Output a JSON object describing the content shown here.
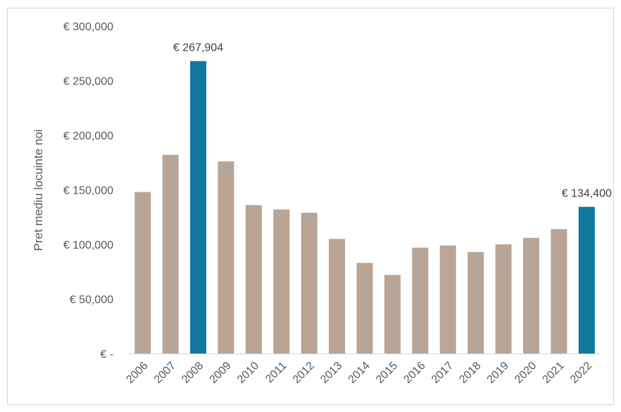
{
  "chart_data": {
    "type": "bar",
    "categories": [
      "2006",
      "2007",
      "2008",
      "2009",
      "2010",
      "2011",
      "2012",
      "2013",
      "2014",
      "2015",
      "2016",
      "2017",
      "2018",
      "2019",
      "2020",
      "2021",
      "2022"
    ],
    "values": [
      148000,
      182000,
      267904,
      176000,
      136000,
      132000,
      129000,
      105000,
      83000,
      72000,
      97000,
      99000,
      93000,
      100000,
      106000,
      114000,
      134400
    ],
    "highlight_indices": [
      2,
      16
    ],
    "data_labels": [
      {
        "index": 2,
        "text": "€ 267,904"
      },
      {
        "index": 16,
        "text": "€ 134,400"
      }
    ],
    "title": "",
    "xlabel": "",
    "ylabel": "Pret mediu locuinte noi",
    "ylim": [
      0,
      300000
    ],
    "y_ticks": [
      {
        "value": 0,
        "label": "€ -"
      },
      {
        "value": 50000,
        "label": "€ 50,000"
      },
      {
        "value": 100000,
        "label": "€ 100,000"
      },
      {
        "value": 150000,
        "label": "€ 150,000"
      },
      {
        "value": 200000,
        "label": "€ 200,000"
      },
      {
        "value": 250000,
        "label": "€ 250,000"
      },
      {
        "value": 300000,
        "label": "€ 300,000"
      }
    ],
    "grid": false,
    "legend": "none",
    "x_tick_rotation": "diagonal",
    "colors": {
      "default": "#b8a595",
      "highlight": "#11789f",
      "axis": "#d9d9d9"
    }
  }
}
